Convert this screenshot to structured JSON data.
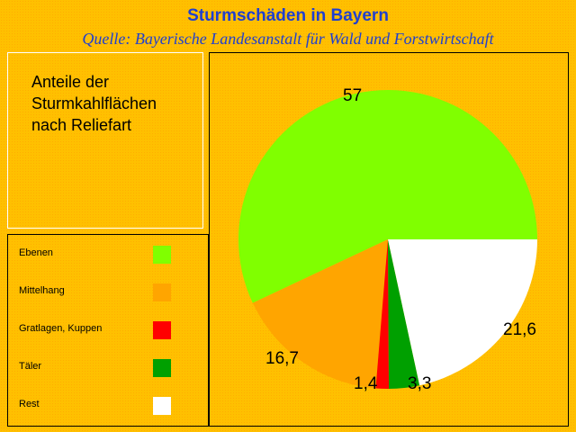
{
  "header": {
    "title": "Sturmschäden in Bayern",
    "subtitle": "Quelle: Bayerische Landesanstalt für Wald und Forstwirtschaft"
  },
  "description": {
    "line1": "Anteile der",
    "line2": "Sturmkahlflächen",
    "line3": "nach  Reliefart"
  },
  "chart_data": {
    "type": "pie",
    "title": "Anteile der Sturmkahlflächen nach Reliefart",
    "categories": [
      "Ebenen",
      "Mittelhang",
      "Gratlagen, Kuppen",
      "Täler",
      "Rest"
    ],
    "values": [
      57,
      16.7,
      1.4,
      3.3,
      21.6
    ],
    "data_labels": [
      "57",
      "16,7",
      "1,4",
      "3,3",
      "21,6"
    ],
    "colors": [
      "#80FF00",
      "#FFA500",
      "#FF0000",
      "#00A000",
      "#FFFFFF"
    ],
    "legend_position": "left"
  }
}
